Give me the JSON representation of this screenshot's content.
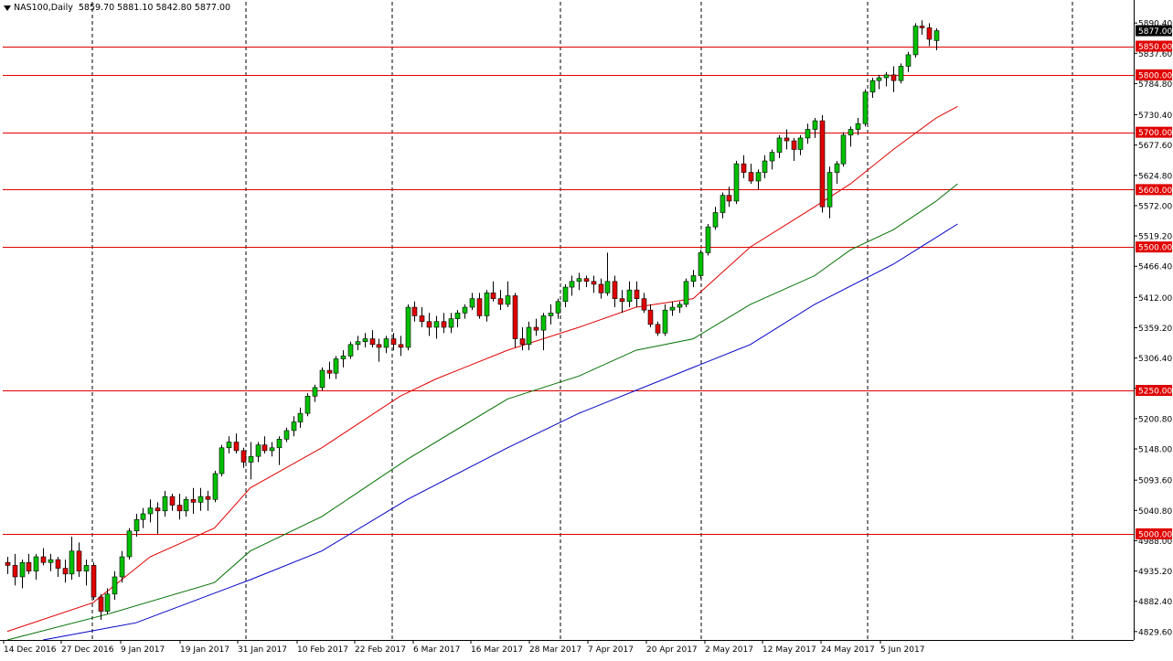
{
  "header": {
    "symbol": "NAS100,Daily",
    "ohlc": "5859.70 5881.10 5842.80 5877.00"
  },
  "colors": {
    "bull": "#00c000",
    "bear": "#e00000",
    "ma_red": "#e00000",
    "ma_green": "#007000",
    "ma_blue": "#0000c8",
    "level_line": "#e00000",
    "label_bg": "#e00000",
    "current_bg": "#000000"
  },
  "chart_data": {
    "type": "candlestick",
    "ylim": [
      4815,
      5905
    ],
    "y_ticks": [
      "5890.40",
      "5837.60",
      "5784.80",
      "5730.40",
      "5677.60",
      "5624.80",
      "5572.00",
      "5519.20",
      "5466.40",
      "5412.00",
      "5359.20",
      "5306.40",
      "5253.60",
      "5200.80",
      "5148.00",
      "5093.60",
      "5040.80",
      "4988.00",
      "4935.20",
      "4882.40",
      "4829.60"
    ],
    "x_labels": [
      "14 Dec 2016",
      "27 Dec 2016",
      "9 Jan 2017",
      "19 Jan 2017",
      "31 Jan 2017",
      "10 Feb 2017",
      "22 Feb 2017",
      "6 Mar 2017",
      "16 Mar 2017",
      "28 Mar 2017",
      "7 Apr 2017",
      "20 Apr 2017",
      "2 May 2017",
      "12 May 2017",
      "24 May 2017",
      "5 Jun 2017"
    ],
    "levels": [
      5850,
      5800,
      5700,
      5600,
      5500,
      5250,
      5000
    ],
    "level_labels": [
      "5850.00",
      "5800.00",
      "5700.00",
      "5600.00",
      "5500.00",
      "5250.00",
      "5000.00"
    ],
    "current_price": 5877.0,
    "current_label": "5877.00",
    "candles": [
      [
        4950,
        4960,
        4930,
        4945
      ],
      [
        4945,
        4965,
        4910,
        4925
      ],
      [
        4925,
        4955,
        4905,
        4950
      ],
      [
        4950,
        4965,
        4930,
        4935
      ],
      [
        4935,
        4965,
        4920,
        4960
      ],
      [
        4960,
        4975,
        4945,
        4950
      ],
      [
        4950,
        4965,
        4935,
        4955
      ],
      [
        4955,
        4960,
        4925,
        4940
      ],
      [
        4940,
        4955,
        4915,
        4930
      ],
      [
        4930,
        4995,
        4920,
        4970
      ],
      [
        4970,
        4985,
        4925,
        4935
      ],
      [
        4935,
        4955,
        4910,
        4945
      ],
      [
        4945,
        4950,
        4885,
        4890
      ],
      [
        4890,
        4895,
        4850,
        4865
      ],
      [
        4865,
        4905,
        4860,
        4895
      ],
      [
        4895,
        4935,
        4885,
        4925
      ],
      [
        4925,
        4970,
        4915,
        4960
      ],
      [
        4960,
        5010,
        4955,
        5005
      ],
      [
        5005,
        5035,
        4995,
        5025
      ],
      [
        5025,
        5045,
        5010,
        5035
      ],
      [
        5035,
        5060,
        5020,
        5045
      ],
      [
        5045,
        5055,
        5000,
        5040
      ],
      [
        5040,
        5075,
        5030,
        5065
      ],
      [
        5065,
        5070,
        5040,
        5050
      ],
      [
        5050,
        5070,
        5025,
        5040
      ],
      [
        5040,
        5065,
        5030,
        5060
      ],
      [
        5060,
        5080,
        5035,
        5055
      ],
      [
        5055,
        5080,
        5040,
        5065
      ],
      [
        5065,
        5075,
        5040,
        5060
      ],
      [
        5060,
        5110,
        5055,
        5105
      ],
      [
        5105,
        5155,
        5100,
        5150
      ],
      [
        5150,
        5170,
        5140,
        5160
      ],
      [
        5160,
        5175,
        5140,
        5145
      ],
      [
        5145,
        5150,
        5115,
        5125
      ],
      [
        5125,
        5160,
        5095,
        5135
      ],
      [
        5135,
        5160,
        5125,
        5155
      ],
      [
        5155,
        5170,
        5140,
        5145
      ],
      [
        5145,
        5160,
        5135,
        5150
      ],
      [
        5150,
        5170,
        5120,
        5165
      ],
      [
        5165,
        5185,
        5160,
        5180
      ],
      [
        5180,
        5205,
        5170,
        5195
      ],
      [
        5195,
        5220,
        5185,
        5210
      ],
      [
        5210,
        5245,
        5205,
        5240
      ],
      [
        5240,
        5260,
        5230,
        5255
      ],
      [
        5255,
        5290,
        5250,
        5285
      ],
      [
        5285,
        5300,
        5270,
        5280
      ],
      [
        5280,
        5310,
        5270,
        5305
      ],
      [
        5305,
        5320,
        5290,
        5310
      ],
      [
        5310,
        5335,
        5305,
        5330
      ],
      [
        5330,
        5345,
        5320,
        5335
      ],
      [
        5335,
        5350,
        5325,
        5340
      ],
      [
        5340,
        5355,
        5325,
        5330
      ],
      [
        5330,
        5340,
        5300,
        5325
      ],
      [
        5325,
        5345,
        5315,
        5340
      ],
      [
        5340,
        5350,
        5320,
        5330
      ],
      [
        5330,
        5345,
        5310,
        5325
      ],
      [
        5325,
        5400,
        5320,
        5395
      ],
      [
        5395,
        5405,
        5370,
        5380
      ],
      [
        5380,
        5395,
        5360,
        5370
      ],
      [
        5370,
        5385,
        5345,
        5360
      ],
      [
        5360,
        5380,
        5340,
        5370
      ],
      [
        5370,
        5385,
        5350,
        5360
      ],
      [
        5360,
        5385,
        5350,
        5375
      ],
      [
        5375,
        5390,
        5360,
        5385
      ],
      [
        5385,
        5400,
        5375,
        5395
      ],
      [
        5395,
        5420,
        5390,
        5410
      ],
      [
        5410,
        5420,
        5375,
        5380
      ],
      [
        5380,
        5425,
        5370,
        5420
      ],
      [
        5420,
        5440,
        5405,
        5410
      ],
      [
        5410,
        5425,
        5390,
        5400
      ],
      [
        5400,
        5440,
        5395,
        5415
      ],
      [
        5415,
        5420,
        5325,
        5340
      ],
      [
        5340,
        5360,
        5320,
        5330
      ],
      [
        5330,
        5370,
        5320,
        5360
      ],
      [
        5360,
        5375,
        5345,
        5355
      ],
      [
        5355,
        5385,
        5320,
        5380
      ],
      [
        5380,
        5400,
        5365,
        5385
      ],
      [
        5385,
        5410,
        5375,
        5405
      ],
      [
        5405,
        5435,
        5395,
        5430
      ],
      [
        5430,
        5450,
        5415,
        5440
      ],
      [
        5440,
        5455,
        5425,
        5445
      ],
      [
        5445,
        5450,
        5430,
        5440
      ],
      [
        5440,
        5450,
        5420,
        5435
      ],
      [
        5435,
        5445,
        5410,
        5420
      ],
      [
        5420,
        5490,
        5415,
        5440
      ],
      [
        5440,
        5450,
        5395,
        5410
      ],
      [
        5410,
        5425,
        5385,
        5405
      ],
      [
        5405,
        5440,
        5395,
        5425
      ],
      [
        5425,
        5440,
        5395,
        5410
      ],
      [
        5410,
        5420,
        5385,
        5390
      ],
      [
        5390,
        5400,
        5360,
        5365
      ],
      [
        5365,
        5370,
        5345,
        5350
      ],
      [
        5350,
        5400,
        5345,
        5390
      ],
      [
        5390,
        5405,
        5380,
        5395
      ],
      [
        5395,
        5405,
        5385,
        5400
      ],
      [
        5400,
        5445,
        5395,
        5440
      ],
      [
        5440,
        5460,
        5430,
        5450
      ],
      [
        5450,
        5495,
        5445,
        5490
      ],
      [
        5490,
        5540,
        5485,
        5535
      ],
      [
        5535,
        5570,
        5530,
        5560
      ],
      [
        5560,
        5595,
        5550,
        5590
      ],
      [
        5590,
        5605,
        5570,
        5580
      ],
      [
        5580,
        5650,
        5575,
        5645
      ],
      [
        5645,
        5660,
        5620,
        5630
      ],
      [
        5630,
        5645,
        5610,
        5615
      ],
      [
        5615,
        5635,
        5600,
        5630
      ],
      [
        5630,
        5660,
        5620,
        5650
      ],
      [
        5650,
        5670,
        5635,
        5665
      ],
      [
        5665,
        5695,
        5655,
        5690
      ],
      [
        5690,
        5705,
        5670,
        5685
      ],
      [
        5685,
        5690,
        5650,
        5670
      ],
      [
        5670,
        5695,
        5660,
        5690
      ],
      [
        5690,
        5715,
        5680,
        5705
      ],
      [
        5705,
        5725,
        5690,
        5720
      ],
      [
        5720,
        5730,
        5560,
        5570
      ],
      [
        5570,
        5640,
        5550,
        5630
      ],
      [
        5630,
        5650,
        5610,
        5645
      ],
      [
        5645,
        5700,
        5640,
        5695
      ],
      [
        5695,
        5710,
        5675,
        5705
      ],
      [
        5705,
        5725,
        5695,
        5715
      ],
      [
        5715,
        5775,
        5710,
        5770
      ],
      [
        5770,
        5795,
        5760,
        5790
      ],
      [
        5790,
        5800,
        5775,
        5795
      ],
      [
        5795,
        5805,
        5780,
        5800
      ],
      [
        5800,
        5815,
        5770,
        5790
      ],
      [
        5790,
        5820,
        5785,
        5815
      ],
      [
        5815,
        5840,
        5805,
        5835
      ],
      [
        5835,
        5890,
        5830,
        5885
      ],
      [
        5885,
        5895,
        5870,
        5882
      ],
      [
        5882,
        5890,
        5850,
        5862
      ],
      [
        5859.7,
        5881.1,
        5842.8,
        5877
      ]
    ],
    "ma": [
      {
        "color": "red",
        "points": [
          [
            0,
            4830
          ],
          [
            12,
            4880
          ],
          [
            20,
            4960
          ],
          [
            29,
            5010
          ],
          [
            34,
            5080
          ],
          [
            44,
            5150
          ],
          [
            55,
            5240
          ],
          [
            60,
            5270
          ],
          [
            70,
            5320
          ],
          [
            80,
            5360
          ],
          [
            88,
            5395
          ],
          [
            96,
            5410
          ],
          [
            104,
            5500
          ],
          [
            113,
            5570
          ],
          [
            118,
            5610
          ],
          [
            124,
            5670
          ],
          [
            130,
            5725
          ],
          [
            133,
            5745
          ]
        ]
      },
      {
        "color": "green",
        "points": [
          [
            0,
            4815
          ],
          [
            14,
            4860
          ],
          [
            29,
            4915
          ],
          [
            34,
            4970
          ],
          [
            44,
            5030
          ],
          [
            56,
            5130
          ],
          [
            70,
            5235
          ],
          [
            80,
            5275
          ],
          [
            88,
            5320
          ],
          [
            96,
            5340
          ],
          [
            104,
            5400
          ],
          [
            113,
            5450
          ],
          [
            118,
            5495
          ],
          [
            124,
            5530
          ],
          [
            130,
            5580
          ],
          [
            133,
            5610
          ]
        ]
      },
      {
        "color": "blue",
        "points": [
          [
            5,
            4815
          ],
          [
            18,
            4845
          ],
          [
            34,
            4920
          ],
          [
            44,
            4970
          ],
          [
            56,
            5060
          ],
          [
            70,
            5150
          ],
          [
            80,
            5210
          ],
          [
            96,
            5290
          ],
          [
            104,
            5330
          ],
          [
            113,
            5400
          ],
          [
            124,
            5470
          ],
          [
            133,
            5540
          ]
        ]
      }
    ]
  }
}
